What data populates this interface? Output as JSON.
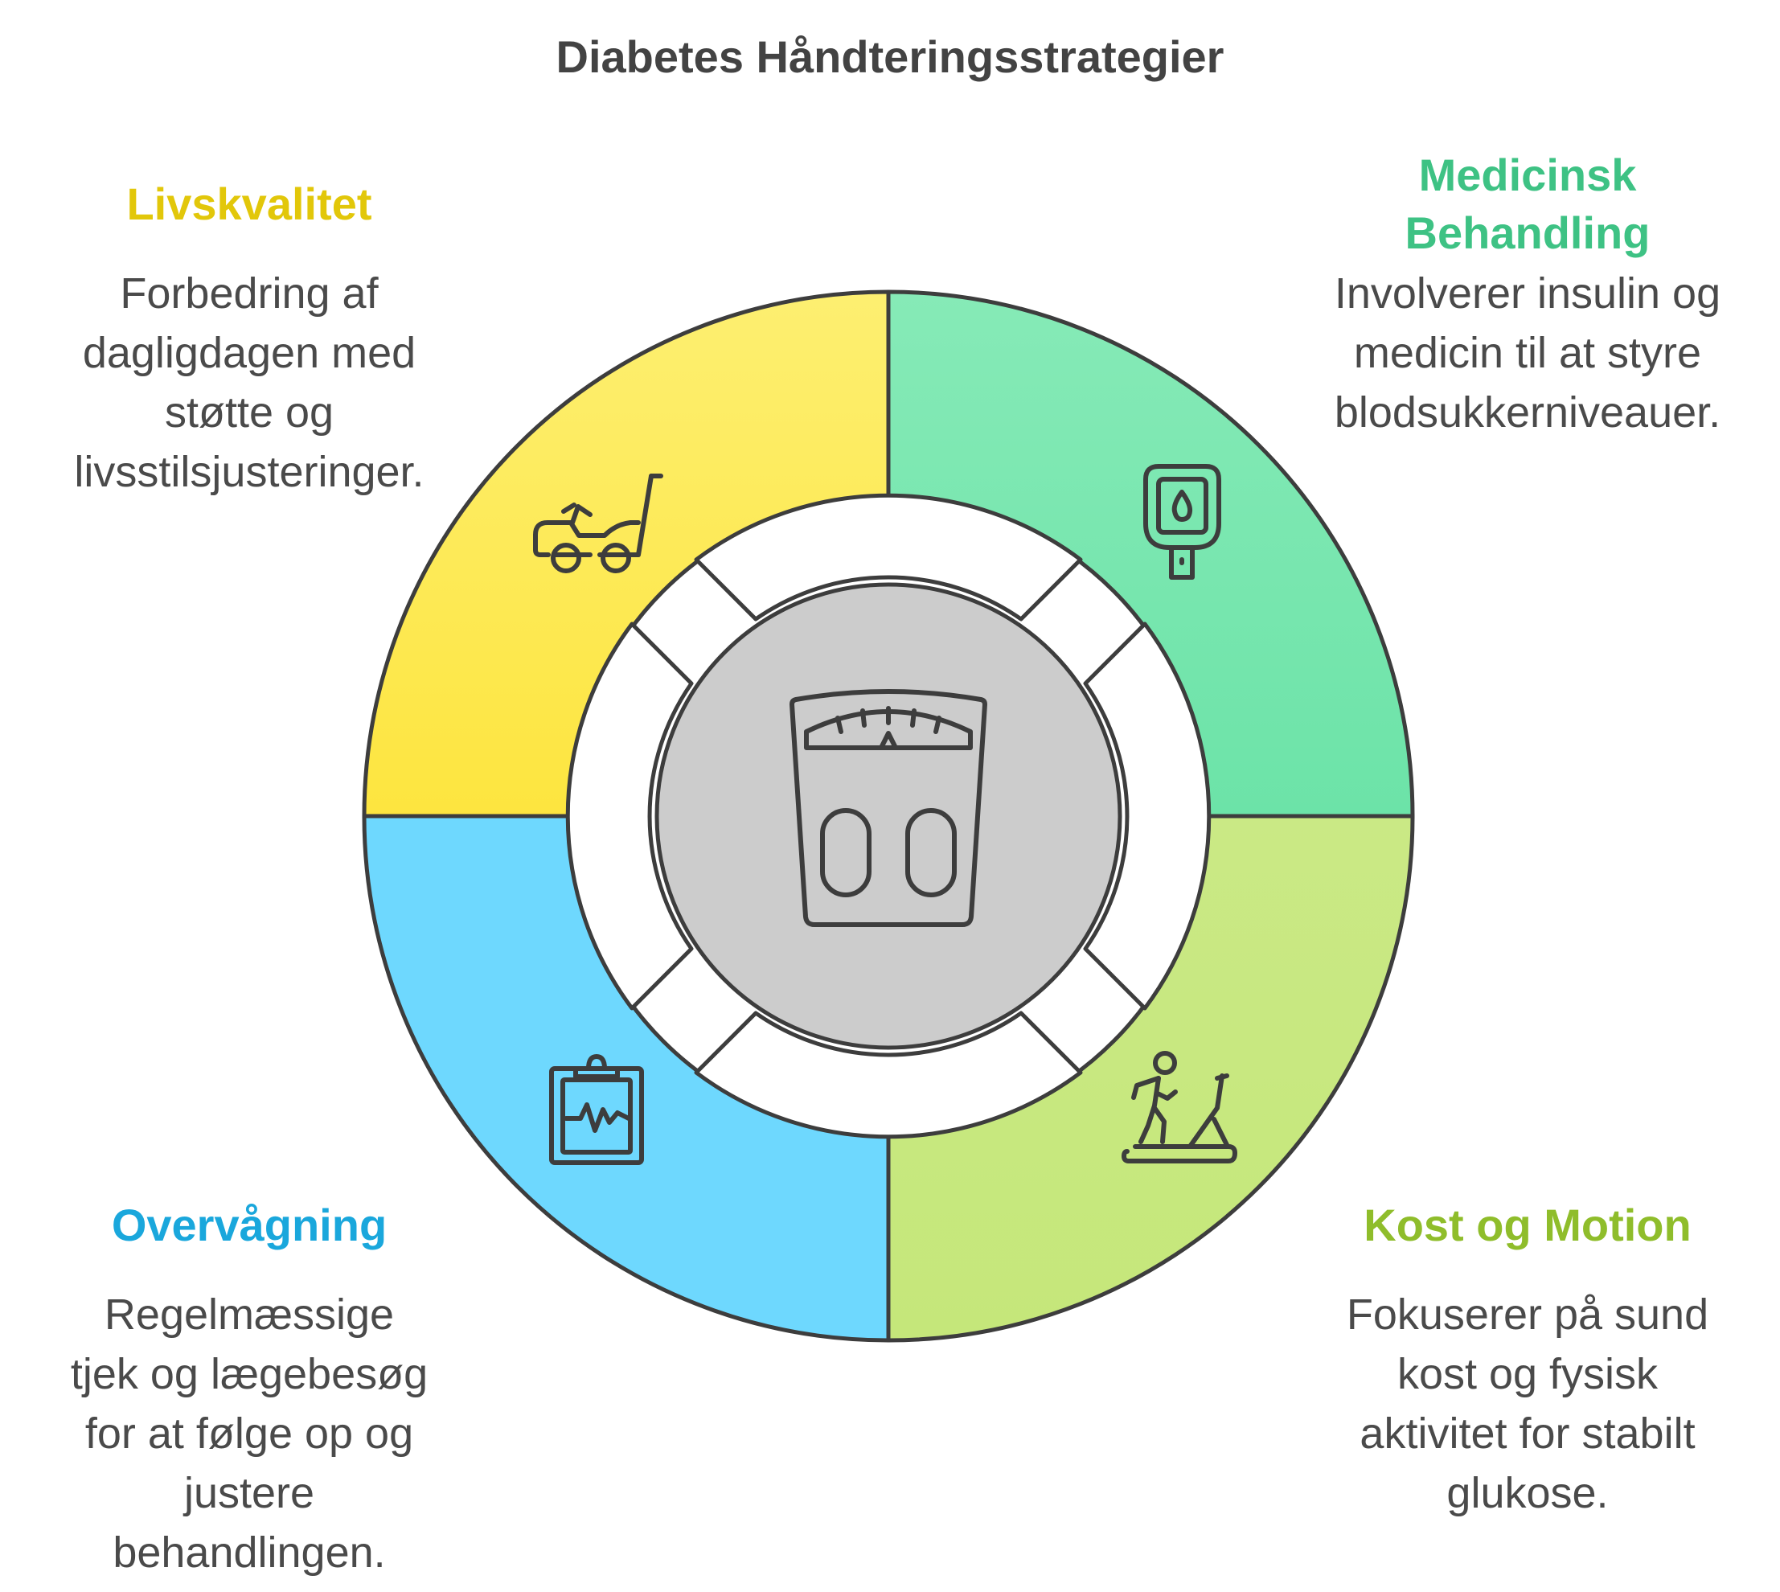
{
  "title": "Diabetes Håndteringsstrategier",
  "colors": {
    "livskvalitet": "#e2c70a",
    "medicinsk": "#3ec284",
    "overvagning": "#1aa7dc",
    "kost": "#8fbd2b",
    "text": "#4a4a4a",
    "center": "#cccccc"
  },
  "center_icon": "bathroom-scale-icon",
  "sections": [
    {
      "id": "livskvalitet",
      "title_lines": [
        "Livskvalitet"
      ],
      "desc_lines": [
        "Forbedring af",
        "dagligdagen med",
        "støtte og",
        "livsstilsjusteringer."
      ],
      "icon": "lawn-tractor-icon"
    },
    {
      "id": "medicinsk",
      "title_lines": [
        "Medicinsk",
        "Behandling"
      ],
      "desc_lines": [
        "Involverer insulin og",
        "medicin til at styre",
        "blodsukkerniveauer."
      ],
      "icon": "glucose-meter-icon"
    },
    {
      "id": "overvagning",
      "title_lines": [
        "Overvågning"
      ],
      "desc_lines": [
        "Regelmæssige",
        "tjek og lægebesøg",
        "for at følge op og",
        "justere",
        "behandlingen."
      ],
      "icon": "clipboard-chart-icon"
    },
    {
      "id": "kost",
      "title_lines": [
        "Kost og Motion"
      ],
      "desc_lines": [
        "Fokuserer på sund",
        "kost og fysisk",
        "aktivitet for stabilt",
        "glukose."
      ],
      "icon": "treadmill-icon"
    }
  ]
}
